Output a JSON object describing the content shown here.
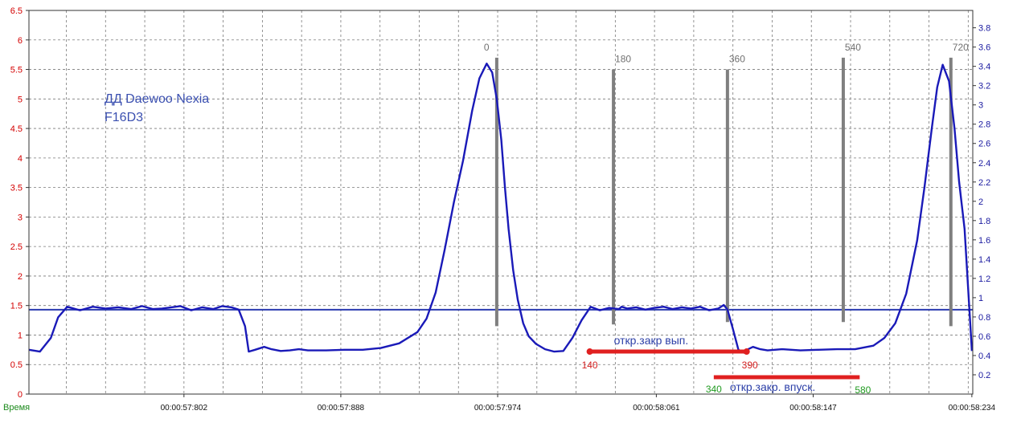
{
  "chart_data": {
    "type": "line",
    "title": [
      "ДД Daewoo Nexia",
      "F16D3"
    ],
    "xlabel": "Время",
    "x_ticks": [
      "00:00:57:802",
      "00:00:57:888",
      "00:00:57:974",
      "00:00:58:061",
      "00:00:58:147",
      "00:00:58:234"
    ],
    "x_tick_values": [
      57.802,
      57.888,
      57.974,
      58.061,
      58.147,
      58.234
    ],
    "xlim": [
      57.717,
      58.2345
    ],
    "ylim_left": [
      0,
      6.5
    ],
    "yticks_left": [
      0,
      0.5,
      1,
      1.5,
      2,
      2.5,
      3,
      3.5,
      4,
      4.5,
      5,
      5.5,
      6,
      6.5
    ],
    "ylim_right": [
      0,
      3.98
    ],
    "yticks_right": [
      0.2,
      0.4,
      0.6,
      0.8,
      1,
      1.2,
      1.4,
      1.6,
      1.8,
      2,
      2.2,
      2.4,
      2.6,
      2.8,
      3,
      3.2,
      3.4,
      3.6,
      3.8
    ],
    "grid": true,
    "hline_left": 1.43,
    "series": [
      {
        "x": [
          57.717,
          57.723,
          57.729,
          57.733,
          57.738,
          57.745,
          57.752,
          57.759,
          57.766,
          57.773,
          57.779,
          57.785,
          57.79,
          57.795,
          57.8,
          57.806,
          57.812,
          57.818,
          57.823,
          57.828,
          57.832,
          57.8355,
          57.8375,
          57.841,
          57.846,
          57.85,
          57.855,
          57.86,
          57.865,
          57.87,
          57.88,
          57.89,
          57.9,
          57.91,
          57.92,
          57.93,
          57.935,
          57.94,
          57.945,
          57.95,
          57.955,
          57.96,
          57.964,
          57.968,
          57.971,
          57.9735,
          57.976,
          57.978,
          57.98,
          57.9825,
          57.985,
          57.988,
          57.991,
          57.995,
          58.0,
          58.005,
          58.01,
          58.015,
          58.02,
          58.025,
          58.03,
          58.035,
          58.0405,
          58.042,
          58.045,
          58.05,
          58.055,
          58.06,
          58.065,
          58.07,
          58.075,
          58.08,
          58.085,
          58.09,
          58.095,
          58.098,
          58.1,
          58.103,
          58.106,
          58.109,
          58.11,
          58.114,
          58.118,
          58.122,
          58.13,
          58.14,
          58.15,
          58.16,
          58.17,
          58.18,
          58.186,
          58.192,
          58.198,
          58.204,
          58.208,
          58.212,
          58.215,
          58.218,
          58.2215,
          58.2245,
          58.227,
          58.23,
          58.234
        ],
        "y": [
          0.75,
          0.72,
          0.95,
          1.3,
          1.48,
          1.42,
          1.48,
          1.45,
          1.47,
          1.44,
          1.49,
          1.44,
          1.45,
          1.47,
          1.49,
          1.42,
          1.47,
          1.44,
          1.49,
          1.47,
          1.43,
          1.15,
          0.72,
          0.75,
          0.8,
          0.76,
          0.73,
          0.74,
          0.76,
          0.74,
          0.74,
          0.75,
          0.75,
          0.78,
          0.86,
          1.05,
          1.28,
          1.72,
          2.45,
          3.25,
          3.95,
          4.8,
          5.35,
          5.6,
          5.45,
          5.0,
          4.3,
          3.5,
          2.8,
          2.1,
          1.6,
          1.2,
          0.98,
          0.85,
          0.76,
          0.72,
          0.73,
          0.95,
          1.25,
          1.48,
          1.42,
          1.46,
          1.44,
          1.48,
          1.45,
          1.47,
          1.43,
          1.46,
          1.48,
          1.44,
          1.47,
          1.45,
          1.48,
          1.42,
          1.45,
          1.51,
          1.43,
          1.1,
          0.75,
          0.7,
          0.74,
          0.8,
          0.76,
          0.74,
          0.76,
          0.74,
          0.75,
          0.76,
          0.76,
          0.82,
          0.95,
          1.2,
          1.7,
          2.6,
          3.5,
          4.5,
          5.2,
          5.58,
          5.3,
          4.5,
          3.6,
          2.8,
          0.73
        ],
        "color": "#1a1ab8"
      }
    ],
    "markers": [
      {
        "label": "0",
        "x": 57.9735,
        "y_top": 5.7,
        "y_bottom": 1.15
      },
      {
        "label": "180",
        "x": 58.0375,
        "y_top": 5.5,
        "y_bottom": 1.18
      },
      {
        "label": "360",
        "x": 58.1,
        "y_top": 5.5,
        "y_bottom": 1.22
      },
      {
        "label": "540",
        "x": 58.1635,
        "y_top": 5.7,
        "y_bottom": 1.22
      },
      {
        "label": "720",
        "x": 58.2225,
        "y_top": 5.7,
        "y_bottom": 1.15
      }
    ],
    "bars": [
      {
        "label": "откр.закр вып.",
        "x_start": 58.0245,
        "x_end": 58.1105,
        "y": 0.72,
        "start_label": "140",
        "end_label": "390",
        "color": "#e02020",
        "label_color": "#d42020"
      },
      {
        "label": "откр.закр. впуск.",
        "x_start": 58.0925,
        "x_end": 58.1725,
        "y": 0.285,
        "start_label": "340",
        "end_label": "580",
        "color": "#e02020",
        "label_color": "#1f9a1f"
      }
    ],
    "colors": {
      "left_axis": "#d40000",
      "right_axis": "#1a1aa0",
      "marker": "#7f7f7f",
      "grid": "#7a7a7a"
    }
  }
}
